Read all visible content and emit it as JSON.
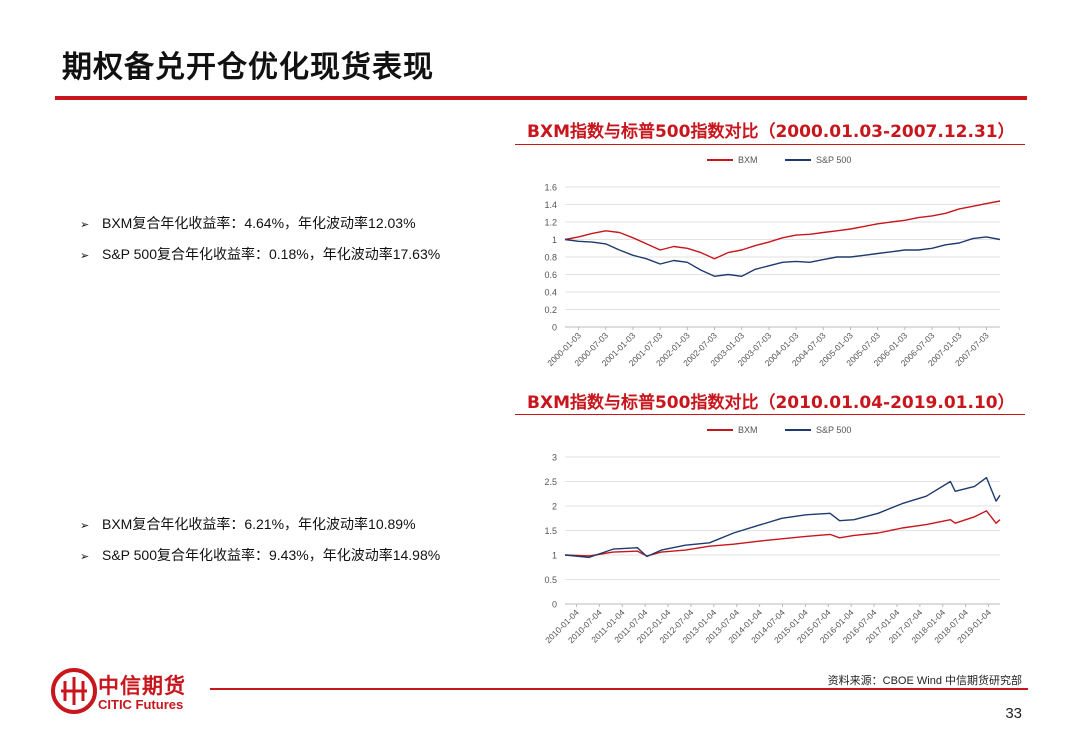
{
  "page": {
    "title": "期权备兑开仓优化现货表现",
    "source": "资料来源：CBOE  Wind  中信期货研究部",
    "page_number": "33",
    "logo": {
      "cn": "中信期货",
      "en": "CITIC Futures"
    }
  },
  "bullets_top": [
    {
      "text": "BXM复合年化收益率：4.64%，年化波动率12.03%"
    },
    {
      "text": "S&P 500复合年化收益率：0.18%，年化波动率17.63%"
    }
  ],
  "bullets_bottom": [
    {
      "text": "BXM复合年化收益率：6.21%，年化波动率10.89%"
    },
    {
      "text": "S&P 500复合年化收益率：9.43%，年化波动率14.98%"
    }
  ],
  "colors": {
    "bxm": "#c8161d",
    "spx": "#1f3a6e",
    "accent": "#c8161d"
  },
  "chart_data": [
    {
      "type": "line",
      "title": "BXM指数与标普500指数对比（2000.01.03-2007.12.31）",
      "legend_position": "top-center",
      "grid": true,
      "ylim": [
        0,
        1.6
      ],
      "yticks": [
        0,
        0.2,
        0.4,
        0.6,
        0.8,
        1,
        1.2,
        1.4,
        1.6
      ],
      "ytick_labels": [
        "0",
        "0.2",
        "0.4",
        "0.6",
        "0.8",
        "1",
        "1.2",
        "1.4",
        "1.6"
      ],
      "xlim": [
        2000.0,
        2008.0
      ],
      "xtick_labels": [
        "2000-01-03",
        "2000-07-03",
        "2001-01-03",
        "2001-07-03",
        "2002-01-03",
        "2002-07-03",
        "2003-01-03",
        "2003-07-03",
        "2004-01-03",
        "2004-07-03",
        "2005-01-03",
        "2005-07-03",
        "2006-01-03",
        "2006-07-03",
        "2007-01-03",
        "2007-07-03"
      ],
      "series": [
        {
          "name": "BXM",
          "color": "#c8161d",
          "x": [
            2000.0,
            2000.25,
            2000.5,
            2000.75,
            2001.0,
            2001.25,
            2001.5,
            2001.75,
            2002.0,
            2002.25,
            2002.5,
            2002.75,
            2003.0,
            2003.25,
            2003.5,
            2003.75,
            2004.0,
            2004.25,
            2004.5,
            2004.75,
            2005.0,
            2005.25,
            2005.5,
            2005.75,
            2006.0,
            2006.25,
            2006.5,
            2006.75,
            2007.0,
            2007.25,
            2007.5,
            2007.75,
            2008.0
          ],
          "y": [
            1.0,
            1.03,
            1.07,
            1.1,
            1.08,
            1.02,
            0.95,
            0.88,
            0.92,
            0.9,
            0.85,
            0.78,
            0.85,
            0.88,
            0.93,
            0.97,
            1.02,
            1.05,
            1.06,
            1.08,
            1.1,
            1.12,
            1.15,
            1.18,
            1.2,
            1.22,
            1.25,
            1.27,
            1.3,
            1.35,
            1.38,
            1.41,
            1.44
          ]
        },
        {
          "name": "S&P 500",
          "color": "#1f3a6e",
          "x": [
            2000.0,
            2000.25,
            2000.5,
            2000.75,
            2001.0,
            2001.25,
            2001.5,
            2001.75,
            2002.0,
            2002.25,
            2002.5,
            2002.75,
            2003.0,
            2003.25,
            2003.5,
            2003.75,
            2004.0,
            2004.25,
            2004.5,
            2004.75,
            2005.0,
            2005.25,
            2005.5,
            2005.75,
            2006.0,
            2006.25,
            2006.5,
            2006.75,
            2007.0,
            2007.25,
            2007.5,
            2007.75,
            2008.0
          ],
          "y": [
            1.0,
            0.98,
            0.97,
            0.95,
            0.88,
            0.82,
            0.78,
            0.72,
            0.76,
            0.74,
            0.65,
            0.58,
            0.6,
            0.58,
            0.66,
            0.7,
            0.74,
            0.75,
            0.74,
            0.77,
            0.8,
            0.8,
            0.82,
            0.84,
            0.86,
            0.88,
            0.88,
            0.9,
            0.94,
            0.96,
            1.01,
            1.03,
            1.0
          ]
        }
      ]
    },
    {
      "type": "line",
      "title": "BXM指数与标普500指数对比（2010.01.04-2019.01.10）",
      "legend_position": "top-center",
      "grid": true,
      "ylim": [
        0,
        3
      ],
      "yticks": [
        0,
        0.5,
        1,
        1.5,
        2,
        2.5,
        3
      ],
      "ytick_labels": [
        "0",
        "0.5",
        "1",
        "1.5",
        "2",
        "2.5",
        "3"
      ],
      "xlim": [
        2010.0,
        2019.03
      ],
      "xtick_labels": [
        "2010-01-04",
        "2010-07-04",
        "2011-01-04",
        "2011-07-04",
        "2012-01-04",
        "2012-07-04",
        "2013-01-04",
        "2013-07-04",
        "2014-01-04",
        "2014-07-04",
        "2015-01-04",
        "2015-07-04",
        "2016-01-04",
        "2016-07-04",
        "2017-01-04",
        "2017-07-04",
        "2018-01-04",
        "2018-07-04",
        "2019-01-04"
      ],
      "series": [
        {
          "name": "BXM",
          "color": "#c8161d",
          "x": [
            2010.0,
            2010.5,
            2011.0,
            2011.5,
            2011.7,
            2012.0,
            2012.5,
            2013.0,
            2013.5,
            2014.0,
            2014.5,
            2015.0,
            2015.5,
            2015.7,
            2016.0,
            2016.5,
            2017.0,
            2017.5,
            2018.0,
            2018.1,
            2018.5,
            2018.75,
            2018.95,
            2019.03
          ],
          "y": [
            1.0,
            0.98,
            1.06,
            1.08,
            0.98,
            1.06,
            1.1,
            1.18,
            1.22,
            1.28,
            1.33,
            1.38,
            1.42,
            1.35,
            1.4,
            1.45,
            1.55,
            1.62,
            1.72,
            1.65,
            1.78,
            1.9,
            1.65,
            1.72
          ]
        },
        {
          "name": "S&P 500",
          "color": "#1f3a6e",
          "x": [
            2010.0,
            2010.5,
            2011.0,
            2011.5,
            2011.7,
            2012.0,
            2012.5,
            2013.0,
            2013.5,
            2014.0,
            2014.5,
            2015.0,
            2015.5,
            2015.7,
            2016.0,
            2016.5,
            2017.0,
            2017.5,
            2018.0,
            2018.1,
            2018.5,
            2018.75,
            2018.95,
            2019.03
          ],
          "y": [
            1.0,
            0.95,
            1.12,
            1.15,
            0.97,
            1.1,
            1.2,
            1.25,
            1.45,
            1.6,
            1.75,
            1.82,
            1.85,
            1.7,
            1.72,
            1.85,
            2.05,
            2.2,
            2.5,
            2.3,
            2.4,
            2.58,
            2.1,
            2.22
          ]
        }
      ]
    }
  ]
}
